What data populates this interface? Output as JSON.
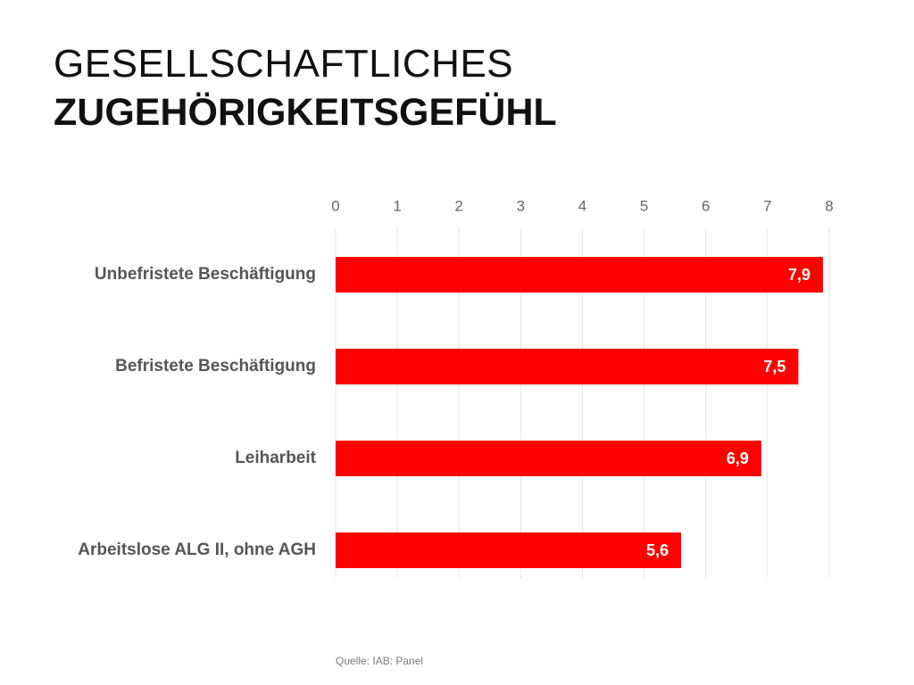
{
  "slide": {
    "title_line1": "GESELLSCHAFTLICHES",
    "title_line2": "ZUGEHÖRIGKEITSGEFÜHL",
    "source": "Quelle: IAB: Panel"
  },
  "colors": {
    "bar": "#ff0000",
    "bar_label": "#ffffff",
    "category_text": "#555555",
    "tick_text": "#666666",
    "grid": "#e6e6e6"
  },
  "chart_data": {
    "type": "bar",
    "orientation": "horizontal",
    "categories": [
      "Unbefristete Beschäftigung",
      "Befristete Beschäftigung",
      "Leiharbeit",
      "Arbeitslose ALG II, ohne AGH"
    ],
    "values": [
      7.9,
      7.5,
      6.9,
      5.6
    ],
    "value_labels": [
      "7,9",
      "7,5",
      "6,9",
      "5,6"
    ],
    "xlim": [
      0,
      8
    ],
    "xticks": [
      "0",
      "1",
      "2",
      "3",
      "4",
      "5",
      "6",
      "7",
      "8"
    ],
    "tick_position": "top",
    "grid": true,
    "title": "",
    "xlabel": "",
    "ylabel": ""
  }
}
